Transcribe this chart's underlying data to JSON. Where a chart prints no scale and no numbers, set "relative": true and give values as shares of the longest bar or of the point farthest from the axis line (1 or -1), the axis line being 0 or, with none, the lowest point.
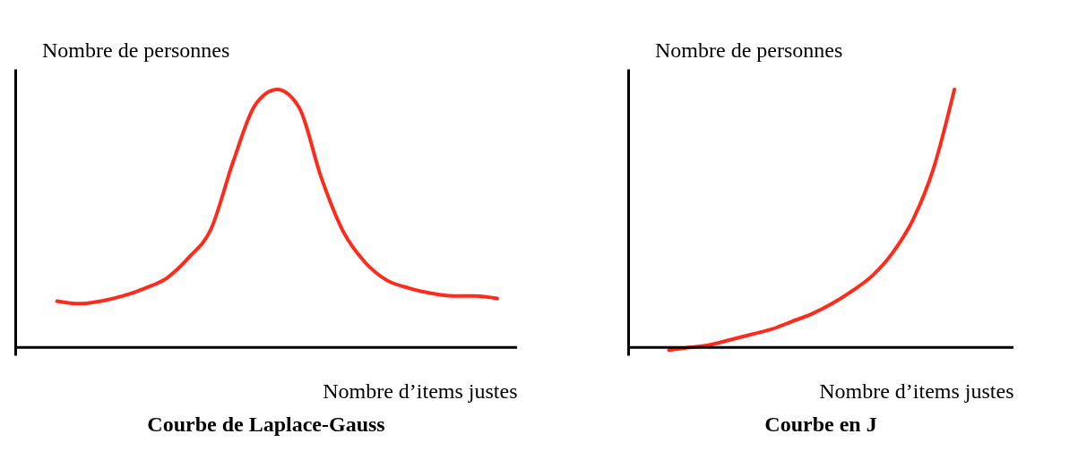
{
  "chart_data": [
    {
      "type": "line",
      "title": "Courbe de Laplace-Gauss",
      "ylabel": "Nombre de personnes",
      "xlabel": "Nombre d’items justes",
      "relative": true,
      "categories": [
        null,
        null,
        null,
        null,
        null,
        null,
        null,
        null,
        null,
        null,
        null,
        null,
        null,
        null,
        null,
        null,
        null,
        null,
        null,
        null,
        null
      ],
      "series": [
        {
          "color": "#ff2a1a",
          "values": [
            0.18,
            0.17,
            0.18,
            0.2,
            0.23,
            0.27,
            0.35,
            0.46,
            0.72,
            0.94,
            1,
            0.93,
            0.66,
            0.45,
            0.33,
            0.26,
            0.23,
            0.21,
            0.2,
            0.2,
            0.19
          ]
        }
      ],
      "grid": false,
      "tick_labels": false
    },
    {
      "type": "line",
      "title": "Courbe en J",
      "ylabel": "Nombre de personnes",
      "xlabel": "Nombre d’items justes",
      "relative": true,
      "categories": [
        null,
        null,
        null,
        null,
        null,
        null,
        null,
        null,
        null,
        null,
        null,
        null,
        null,
        null,
        null
      ],
      "series": [
        {
          "color": "#ff2a1a",
          "values": [
            -0.01,
            0,
            0.01,
            0.03,
            0.05,
            0.07,
            0.1,
            0.13,
            0.17,
            0.22,
            0.28,
            0.37,
            0.5,
            0.7,
            1
          ]
        }
      ],
      "grid": false,
      "tick_labels": false
    }
  ]
}
